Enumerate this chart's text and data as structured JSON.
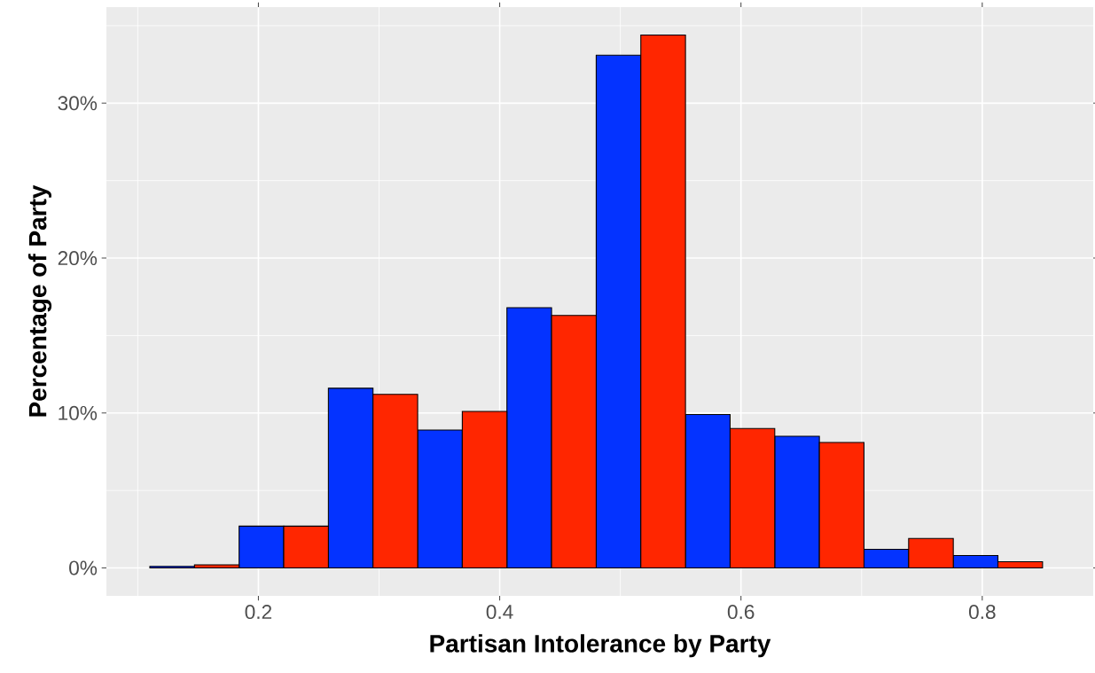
{
  "chart_data": {
    "type": "histogram",
    "xlabel": "Partisan Intolerance by Party",
    "ylabel": "Percentage of Party",
    "bins": [
      0.11,
      0.184,
      0.258,
      0.332,
      0.406,
      0.48,
      0.554,
      0.628,
      0.702,
      0.776,
      0.85
    ],
    "series": [
      {
        "color": "#0433ff",
        "values": [
          0.1,
          2.7,
          11.6,
          8.9,
          16.8,
          33.1,
          9.9,
          8.5,
          1.2,
          0.8
        ]
      },
      {
        "color": "#ff2600",
        "values": [
          0.2,
          2.7,
          11.2,
          10.1,
          16.3,
          34.4,
          9.0,
          8.1,
          1.9,
          0.4
        ]
      }
    ],
    "xlim": [
      0.074,
      0.892
    ],
    "ylim": [
      -1.8,
      36.2
    ],
    "xticks": [
      0.2,
      0.4,
      0.6,
      0.8
    ],
    "yticks": [
      {
        "value": 0,
        "label": "0%"
      },
      {
        "value": 10,
        "label": "10%"
      },
      {
        "value": 20,
        "label": "20%"
      },
      {
        "value": 30,
        "label": "30%"
      }
    ],
    "grid": true
  }
}
